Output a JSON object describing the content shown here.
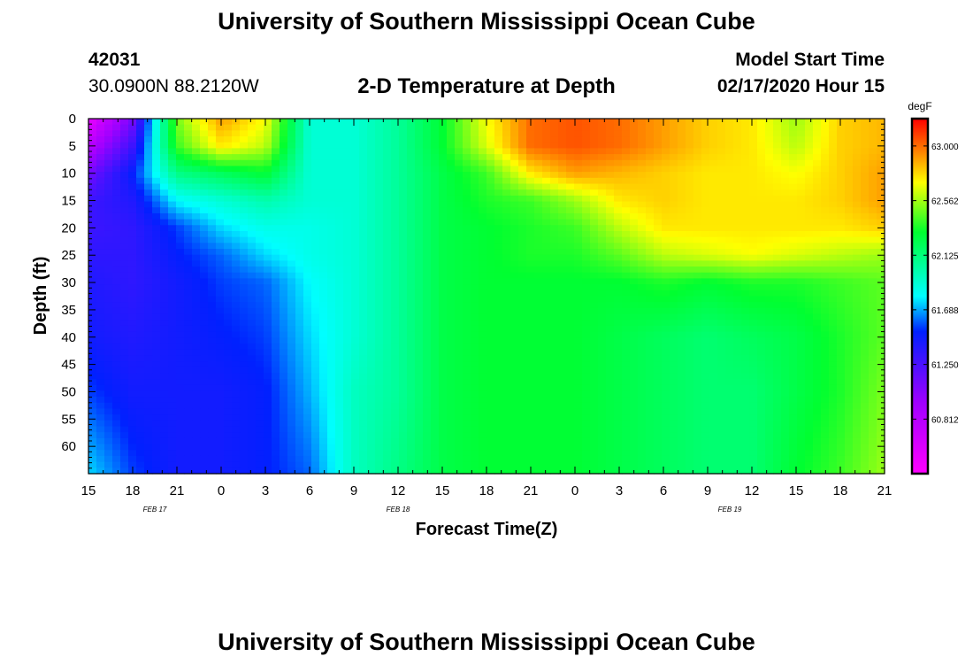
{
  "header": {
    "title": "University of Southern Mississippi Ocean Cube",
    "station_id": "42031",
    "location": "30.0900N 88.2120W",
    "plot_title": "2-D Temperature at Depth",
    "model_start_label": "Model Start Time",
    "model_start_value": "02/17/2020 Hour 15"
  },
  "footer": {
    "title": "University of Southern Mississippi Ocean Cube"
  },
  "chart_data": {
    "type": "heatmap",
    "title": "2-D Temperature at Depth",
    "xlabel": "Forecast Time(Z)",
    "ylabel": "Depth (ft)",
    "x_tick_labels": [
      "15",
      "18",
      "21",
      "0",
      "3",
      "6",
      "9",
      "12",
      "15",
      "18",
      "21",
      "0",
      "3",
      "6",
      "9",
      "12",
      "15",
      "18",
      "21"
    ],
    "x_date_labels": [
      {
        "label": "FEB 17",
        "tick_index": 1.5
      },
      {
        "label": "FEB 18",
        "tick_index": 7
      },
      {
        "label": "FEB 19",
        "tick_index": 14.5
      }
    ],
    "xlim_hours": [
      0,
      54
    ],
    "y_tick_labels": [
      "0",
      "5",
      "10",
      "15",
      "20",
      "25",
      "30",
      "35",
      "40",
      "45",
      "50",
      "55",
      "60"
    ],
    "ylim_ft": [
      0,
      65
    ],
    "colorbar": {
      "unit": "degF",
      "range": [
        60.375,
        63.219
      ],
      "tick_labels": [
        "63.000",
        "62.562",
        "62.125",
        "61.688",
        "61.250",
        "60.812"
      ],
      "tick_values": [
        63.0,
        62.562,
        62.125,
        61.688,
        61.25,
        60.812
      ]
    },
    "grid_hours": [
      0,
      3,
      6,
      9,
      12,
      15,
      18,
      21,
      24,
      27,
      30,
      33,
      36,
      39,
      42,
      45,
      48,
      51,
      54
    ],
    "grid_depths_ft": [
      0,
      5,
      10,
      15,
      20,
      25,
      30,
      40,
      50,
      65
    ],
    "values_degF": [
      [
        60.5,
        61.1,
        62.5,
        62.9,
        62.7,
        61.9,
        61.9,
        62.05,
        62.3,
        62.7,
        63.0,
        63.05,
        63.0,
        62.9,
        62.8,
        62.75,
        62.55,
        62.8,
        62.85
      ],
      [
        60.8,
        61.3,
        62.4,
        62.75,
        62.6,
        61.9,
        61.9,
        62.05,
        62.3,
        62.65,
        63.0,
        63.05,
        63.0,
        62.9,
        62.8,
        62.75,
        62.6,
        62.8,
        62.85
      ],
      [
        61.1,
        61.5,
        62.1,
        62.2,
        62.3,
        61.9,
        61.9,
        62.05,
        62.25,
        62.4,
        62.75,
        62.9,
        62.85,
        62.8,
        62.75,
        62.75,
        62.7,
        62.8,
        62.9
      ],
      [
        61.3,
        61.4,
        61.8,
        61.9,
        62.0,
        61.9,
        61.9,
        62.05,
        62.25,
        62.35,
        62.4,
        62.55,
        62.75,
        62.8,
        62.75,
        62.75,
        62.75,
        62.8,
        62.9
      ],
      [
        61.3,
        61.35,
        61.55,
        61.75,
        61.85,
        61.85,
        61.9,
        62.05,
        62.25,
        62.3,
        62.35,
        62.4,
        62.6,
        62.75,
        62.75,
        62.75,
        62.75,
        62.75,
        62.8
      ],
      [
        61.35,
        61.35,
        61.5,
        61.6,
        61.75,
        61.85,
        61.9,
        62.05,
        62.25,
        62.3,
        62.35,
        62.35,
        62.45,
        62.6,
        62.65,
        62.7,
        62.65,
        62.6,
        62.55
      ],
      [
        61.4,
        61.35,
        61.45,
        61.55,
        61.6,
        61.8,
        61.9,
        62.05,
        62.25,
        62.3,
        62.3,
        62.3,
        62.3,
        62.35,
        62.3,
        62.35,
        62.35,
        62.4,
        62.45
      ],
      [
        61.45,
        61.4,
        61.45,
        61.5,
        61.55,
        61.75,
        61.9,
        62.05,
        62.25,
        62.3,
        62.3,
        62.3,
        62.25,
        62.2,
        62.15,
        62.2,
        62.25,
        62.35,
        62.45
      ],
      [
        61.55,
        61.45,
        61.45,
        61.45,
        61.5,
        61.7,
        61.95,
        62.05,
        62.25,
        62.3,
        62.3,
        62.3,
        62.25,
        62.2,
        62.15,
        62.15,
        62.25,
        62.35,
        62.5
      ],
      [
        61.75,
        61.55,
        61.45,
        61.45,
        61.5,
        61.6,
        61.95,
        62.1,
        62.25,
        62.3,
        62.3,
        62.3,
        62.25,
        62.2,
        62.15,
        62.15,
        62.3,
        62.4,
        62.55
      ]
    ]
  }
}
